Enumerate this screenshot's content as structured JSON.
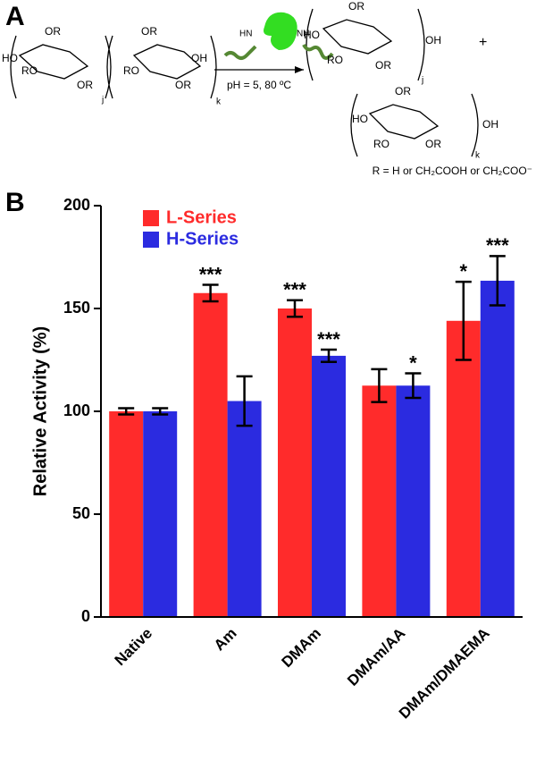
{
  "panel_a": {
    "label": "A",
    "reactant": [
      "OR",
      "HO",
      "RO",
      "OR",
      "j",
      "OR",
      "RO",
      "OR",
      "OH",
      "k"
    ],
    "enzyme": [
      "HN",
      "NH"
    ],
    "condition": "pH = 5, 80 ºC",
    "product_1": [
      "OR",
      "HO",
      "RO",
      "OR",
      "OH",
      "j"
    ],
    "plus": "+",
    "product_2": [
      "OR",
      "HO",
      "RO",
      "OR",
      "OH",
      "k"
    ],
    "r_definition": "R = H or CH₂COOH or CH₂COO⁻"
  },
  "chart_data": {
    "type": "bar",
    "panel_label": "B",
    "y_label": "Relative Activity (%)",
    "categories": [
      "Native",
      "Am",
      "DMAm",
      "DMAm/AA",
      "DMAm/DMAEMA"
    ],
    "series": [
      {
        "name": "L-Series",
        "color": "#ff2b2b",
        "values": [
          100,
          157.5,
          150,
          112.5,
          144
        ],
        "errors": [
          1.5,
          4,
          4,
          8,
          19
        ],
        "significance": [
          null,
          "***",
          "***",
          null,
          "*"
        ]
      },
      {
        "name": "H-Series",
        "color": "#2b2be0",
        "values": [
          100,
          105,
          127,
          112.5,
          163.5
        ],
        "errors": [
          1.5,
          12,
          3,
          6,
          12
        ],
        "significance": [
          null,
          null,
          "***",
          "*",
          "***"
        ]
      }
    ],
    "ylim": [
      0,
      200
    ],
    "yticks": [
      0,
      50,
      100,
      150,
      200
    ],
    "legend": "upper left"
  }
}
